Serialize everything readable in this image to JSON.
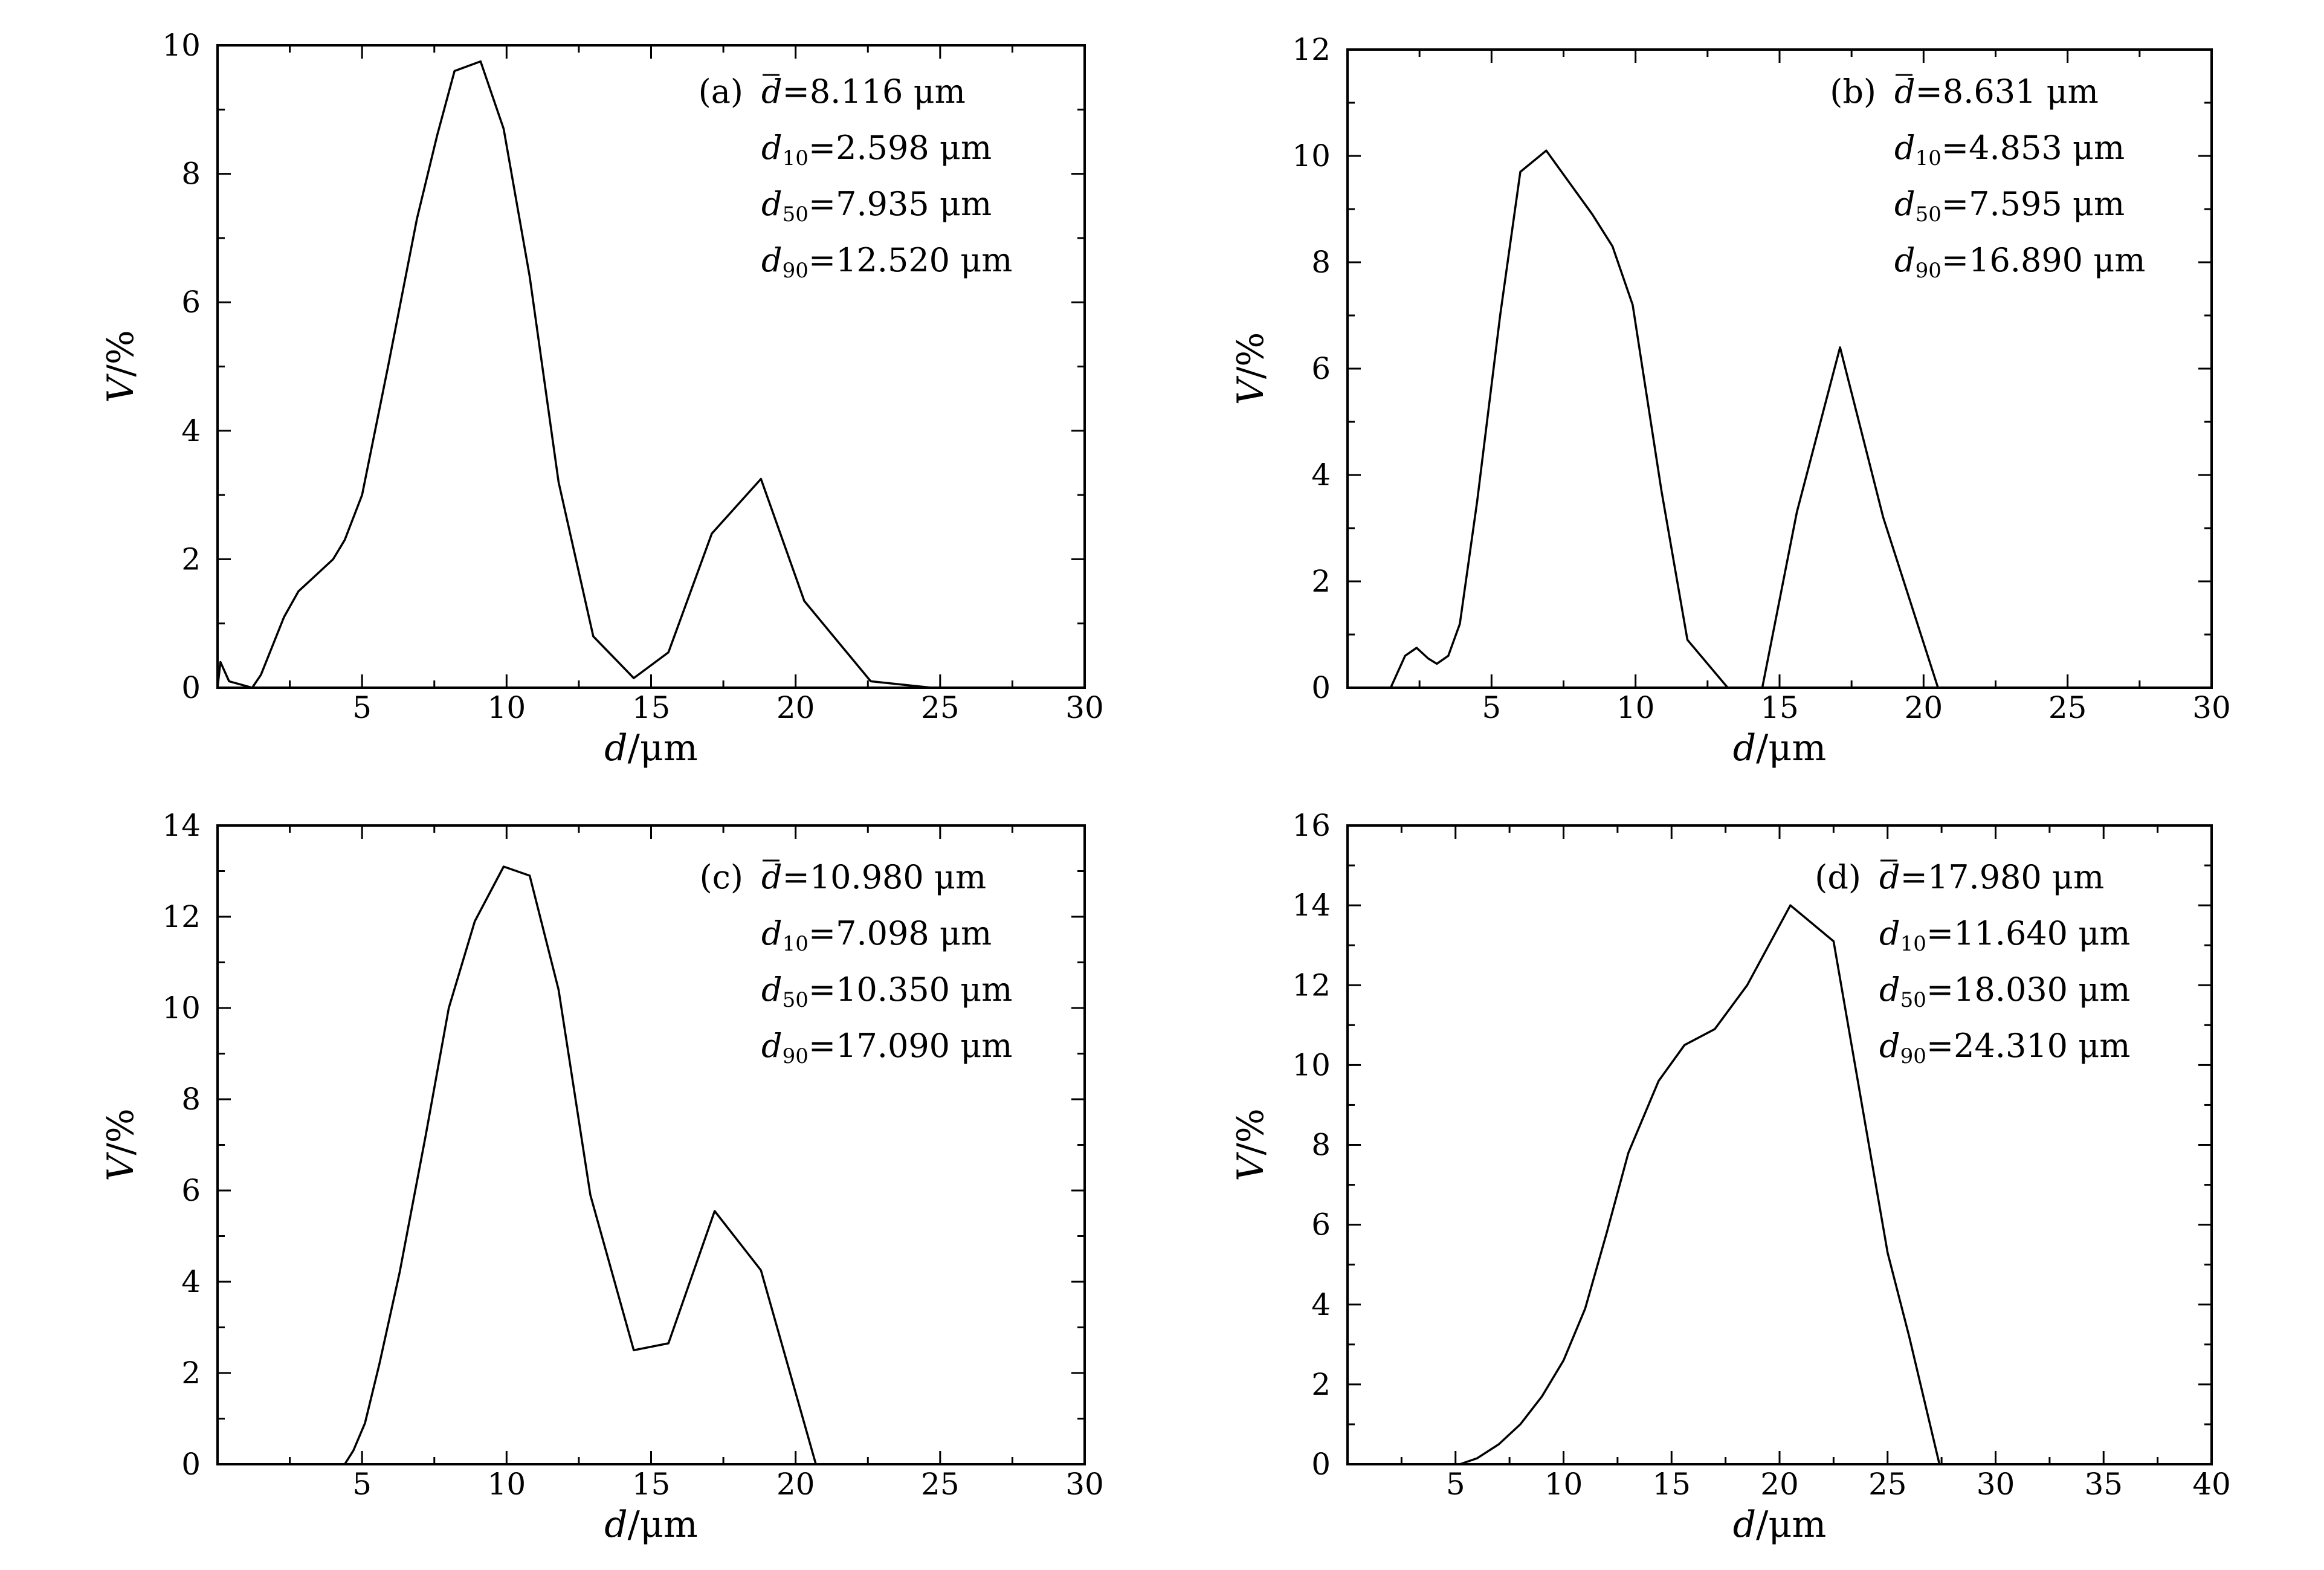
{
  "chart_data": [
    {
      "type": "line",
      "panel": "(a)",
      "xlabel": "d/μm",
      "ylabel": "V/%",
      "xlim": [
        0,
        30
      ],
      "ylim": [
        0,
        10
      ],
      "xticks": [
        5,
        10,
        15,
        20,
        25,
        30
      ],
      "yticks": [
        0,
        2,
        4,
        6,
        8,
        10
      ],
      "annotations": [
        {
          "sym": "d",
          "sub": "",
          "bar": true,
          "value": "=8.116 μm"
        },
        {
          "sym": "d",
          "sub": "10",
          "bar": false,
          "value": "=2.598 μm"
        },
        {
          "sym": "d",
          "sub": "50",
          "bar": false,
          "value": "=7.935 μm"
        },
        {
          "sym": "d",
          "sub": "90",
          "bar": false,
          "value": "=12.520 μm"
        }
      ],
      "series": [
        {
          "x": [
            0,
            0.1,
            0.4,
            1.2,
            1.5,
            2.3,
            2.8,
            3.4,
            4.0,
            4.4,
            5.0,
            5.9,
            6.9,
            7.6,
            8.2,
            9.1,
            9.9,
            10.8,
            11.8,
            13.0,
            14.4,
            15.6,
            17.1,
            18.8,
            20.3,
            22.6,
            24.7
          ],
          "y": [
            0,
            0.4,
            0.1,
            0,
            0.2,
            1.1,
            1.5,
            1.75,
            2.0,
            2.3,
            3.0,
            5.0,
            7.3,
            8.6,
            9.6,
            9.75,
            8.7,
            6.4,
            3.2,
            0.8,
            0.15,
            0.55,
            2.4,
            3.25,
            1.35,
            0.1,
            0
          ]
        }
      ]
    },
    {
      "type": "line",
      "panel": "(b)",
      "xlabel": "d/μm",
      "ylabel": "V/%",
      "xlim": [
        0,
        30
      ],
      "ylim": [
        0,
        12
      ],
      "xticks": [
        5,
        10,
        15,
        20,
        25,
        30
      ],
      "yticks": [
        0,
        2,
        4,
        6,
        8,
        10,
        12
      ],
      "annotations": [
        {
          "sym": "d",
          "sub": "",
          "bar": true,
          "value": "=8.631 μm"
        },
        {
          "sym": "d",
          "sub": "10",
          "bar": false,
          "value": "=4.853 μm"
        },
        {
          "sym": "d",
          "sub": "50",
          "bar": false,
          "value": "=7.595 μm"
        },
        {
          "sym": "d",
          "sub": "90",
          "bar": false,
          "value": "=16.890 μm"
        }
      ],
      "series": [
        {
          "x": [
            1.5,
            2.0,
            2.4,
            2.8,
            3.1,
            3.5,
            3.9,
            4.5,
            5.3,
            6.0,
            6.9,
            7.7,
            8.5,
            9.2,
            9.9,
            10.9,
            11.8,
            13.2,
            14.4,
            15.6,
            17.1,
            18.6,
            20.5
          ],
          "y": [
            0,
            0.6,
            0.75,
            0.55,
            0.45,
            0.6,
            1.2,
            3.5,
            7.0,
            9.7,
            10.1,
            9.5,
            8.9,
            8.3,
            7.2,
            3.7,
            0.9,
            0,
            0,
            3.3,
            6.4,
            3.2,
            0
          ]
        }
      ]
    },
    {
      "type": "line",
      "panel": "(c)",
      "xlabel": "d/μm",
      "ylabel": "V/%",
      "xlim": [
        0,
        30
      ],
      "ylim": [
        0,
        14
      ],
      "xticks": [
        5,
        10,
        15,
        20,
        25,
        30
      ],
      "yticks": [
        0,
        2,
        4,
        6,
        8,
        10,
        12,
        14
      ],
      "annotations": [
        {
          "sym": "d",
          "sub": "",
          "bar": true,
          "value": "=10.980 μm"
        },
        {
          "sym": "d",
          "sub": "10",
          "bar": false,
          "value": "=7.098 μm"
        },
        {
          "sym": "d",
          "sub": "50",
          "bar": false,
          "value": "=10.350 μm"
        },
        {
          "sym": "d",
          "sub": "90",
          "bar": false,
          "value": "=17.090 μm"
        }
      ],
      "series": [
        {
          "x": [
            4.4,
            4.7,
            5.1,
            5.6,
            6.3,
            7.2,
            8.0,
            8.9,
            9.9,
            10.8,
            11.8,
            12.9,
            14.4,
            15.6,
            17.2,
            18.8,
            20.7
          ],
          "y": [
            0,
            0.3,
            0.9,
            2.2,
            4.2,
            7.2,
            10.0,
            11.9,
            13.1,
            12.9,
            10.4,
            5.9,
            2.5,
            2.65,
            5.55,
            4.25,
            0
          ]
        }
      ]
    },
    {
      "type": "line",
      "panel": "(d)",
      "xlabel": "d/μm",
      "ylabel": "V/%",
      "xlim": [
        0,
        40
      ],
      "ylim": [
        0,
        16
      ],
      "xticks": [
        5,
        10,
        15,
        20,
        25,
        30,
        35,
        40
      ],
      "yticks": [
        0,
        2,
        4,
        6,
        8,
        10,
        12,
        14,
        16
      ],
      "annotations": [
        {
          "sym": "d",
          "sub": "",
          "bar": true,
          "value": "=17.980 μm"
        },
        {
          "sym": "d",
          "sub": "10",
          "bar": false,
          "value": "=11.640 μm"
        },
        {
          "sym": "d",
          "sub": "50",
          "bar": false,
          "value": "=18.030 μm"
        },
        {
          "sym": "d",
          "sub": "90",
          "bar": false,
          "value": "=24.310 μm"
        }
      ],
      "series": [
        {
          "x": [
            5.2,
            6.0,
            7.0,
            8.0,
            9.0,
            10.0,
            11.0,
            12.0,
            13.0,
            14.4,
            15.6,
            17.0,
            18.5,
            20.5,
            22.5,
            25.0,
            26.0,
            27.4
          ],
          "y": [
            0,
            0.15,
            0.5,
            1.0,
            1.7,
            2.6,
            3.9,
            5.8,
            7.8,
            9.6,
            10.5,
            10.9,
            12.0,
            14.0,
            13.1,
            5.3,
            3.2,
            0
          ]
        }
      ]
    }
  ]
}
